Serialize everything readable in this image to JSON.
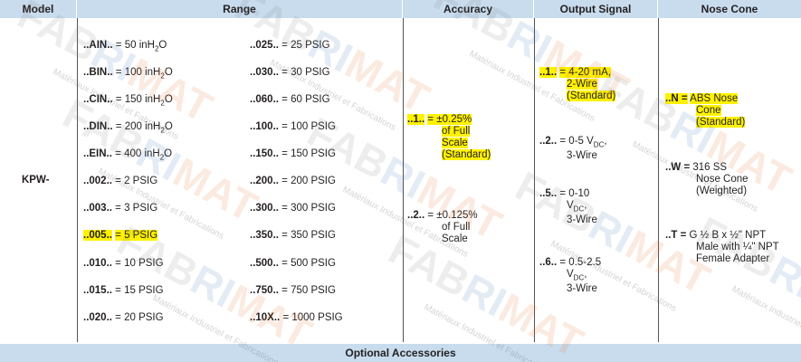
{
  "header": {
    "model": "Model",
    "range": "Range",
    "accuracy": "Accuracy",
    "output": "Output Signal",
    "nose": "Nose Cone"
  },
  "model": "KPW-",
  "range_left": [
    {
      "code": "..AIN..",
      "lines": [
        [
          "= 50 inH",
          "2",
          "O"
        ]
      ]
    },
    {
      "code": "..BIN..",
      "lines": [
        [
          "= 100 inH",
          "2",
          "O"
        ]
      ]
    },
    {
      "code": "..CIN..",
      "lines": [
        [
          "= 150 inH",
          "2",
          "O"
        ]
      ]
    },
    {
      "code": "..DIN..",
      "lines": [
        [
          "= 200 inH",
          "2",
          "O"
        ]
      ]
    },
    {
      "code": "..EIN..",
      "lines": [
        [
          "= 400 inH",
          "2",
          "O"
        ]
      ]
    },
    {
      "code": "..002..",
      "lines": [
        [
          "= 2 PSIG"
        ]
      ]
    },
    {
      "code": "..003..",
      "lines": [
        [
          "= 3 PSIG"
        ]
      ]
    },
    {
      "code": "..005..",
      "lines": [
        [
          "= 5 PSIG"
        ]
      ],
      "highlight": true
    },
    {
      "code": "..010..",
      "lines": [
        [
          "= 10 PSIG"
        ]
      ]
    },
    {
      "code": "..015..",
      "lines": [
        [
          "= 15 PSIG"
        ]
      ]
    },
    {
      "code": "..020..",
      "lines": [
        [
          "= 20 PSIG"
        ]
      ]
    }
  ],
  "range_right": [
    {
      "code": "..025..",
      "lines": [
        [
          "= 25 PSIG"
        ]
      ]
    },
    {
      "code": "..030..",
      "lines": [
        [
          "= 30 PSIG"
        ]
      ]
    },
    {
      "code": "..060..",
      "lines": [
        [
          "= 60 PSIG"
        ]
      ]
    },
    {
      "code": "..100..",
      "lines": [
        [
          "= 100 PSIG"
        ]
      ]
    },
    {
      "code": "..150..",
      "lines": [
        [
          "= 150 PSIG"
        ]
      ]
    },
    {
      "code": "..200..",
      "lines": [
        [
          "= 200 PSIG"
        ]
      ]
    },
    {
      "code": "..300..",
      "lines": [
        [
          "= 300 PSIG"
        ]
      ]
    },
    {
      "code": "..350..",
      "lines": [
        [
          "= 350 PSIG"
        ]
      ]
    },
    {
      "code": "..500..",
      "lines": [
        [
          "= 500 PSIG"
        ]
      ]
    },
    {
      "code": "..750..",
      "lines": [
        [
          "= 750 PSIG"
        ]
      ]
    },
    {
      "code": "..10X..",
      "lines": [
        [
          "= 1000 PSIG"
        ]
      ]
    }
  ],
  "accuracy": [
    {
      "code": "..1..",
      "lines": [
        [
          "= ±0.25%"
        ],
        [
          "of Full"
        ],
        [
          "Scale"
        ],
        [
          "(Standard)"
        ]
      ],
      "highlight": true
    },
    {
      "code": "..2..",
      "lines": [
        [
          "= ±0.125%"
        ],
        [
          "of Full"
        ],
        [
          "Scale"
        ]
      ]
    }
  ],
  "output": [
    {
      "code": "..1..",
      "lines": [
        [
          "= 4-20 mA,"
        ],
        [
          "2-Wire"
        ],
        [
          "(Standard)"
        ]
      ],
      "highlight": true
    },
    {
      "code": "..2..",
      "lines": [
        [
          "= 0-5 V",
          "DC",
          ","
        ],
        [
          "3-Wire"
        ]
      ]
    },
    {
      "code": "..5..",
      "lines": [
        [
          "= 0-10"
        ],
        [
          "V",
          "DC",
          ","
        ],
        [
          "3-Wire"
        ]
      ]
    },
    {
      "code": "..6..",
      "lines": [
        [
          "= 0.5-2.5"
        ],
        [
          "V",
          "DC",
          ","
        ],
        [
          "3-Wire"
        ]
      ]
    }
  ],
  "nose": [
    {
      "code": "..N =",
      "lines": [
        [
          "ABS Nose"
        ],
        [
          "Cone"
        ],
        [
          "(Standard)"
        ]
      ],
      "highlight": true
    },
    {
      "code": "..W =",
      "lines": [
        [
          "316 SS"
        ],
        [
          "Nose Cone"
        ],
        [
          "(Weighted)"
        ]
      ]
    },
    {
      "code": "..T =",
      "lines": [
        [
          "G ½ B x ½\" NPT"
        ],
        [
          "Male with ¼\" NPT"
        ],
        [
          "Female Adapter"
        ]
      ]
    }
  ],
  "footer": "Optional Accessories",
  "watermark": {
    "brand": [
      "FAB",
      "RI",
      "MAT"
    ],
    "tagline": "Matériaux Industriel et Fabrications"
  }
}
